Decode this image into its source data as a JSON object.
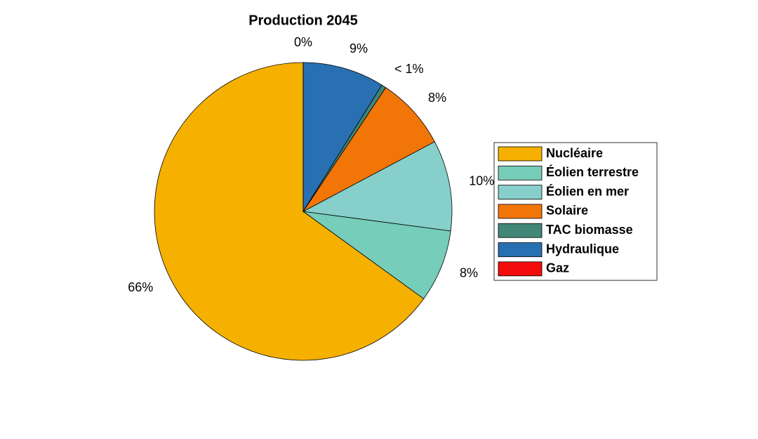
{
  "chart_data": {
    "type": "pie",
    "title": "Production 2045",
    "categories": [
      "Nucléaire",
      "Éolien terrestre",
      "Éolien en mer",
      "Solaire",
      "TAC biomasse",
      "Hydraulique",
      "Gaz"
    ],
    "values": [
      66,
      8,
      10,
      8,
      0.5,
      9,
      0
    ],
    "value_labels": [
      "66%",
      "8%",
      "10%",
      "8%",
      "< 1%",
      "9%",
      "0%"
    ],
    "colors": [
      "#f5b000",
      "#76cdb9",
      "#86cfca",
      "#f27507",
      "#418677",
      "#2870b1",
      "#f20c0c"
    ],
    "legend": "right"
  }
}
